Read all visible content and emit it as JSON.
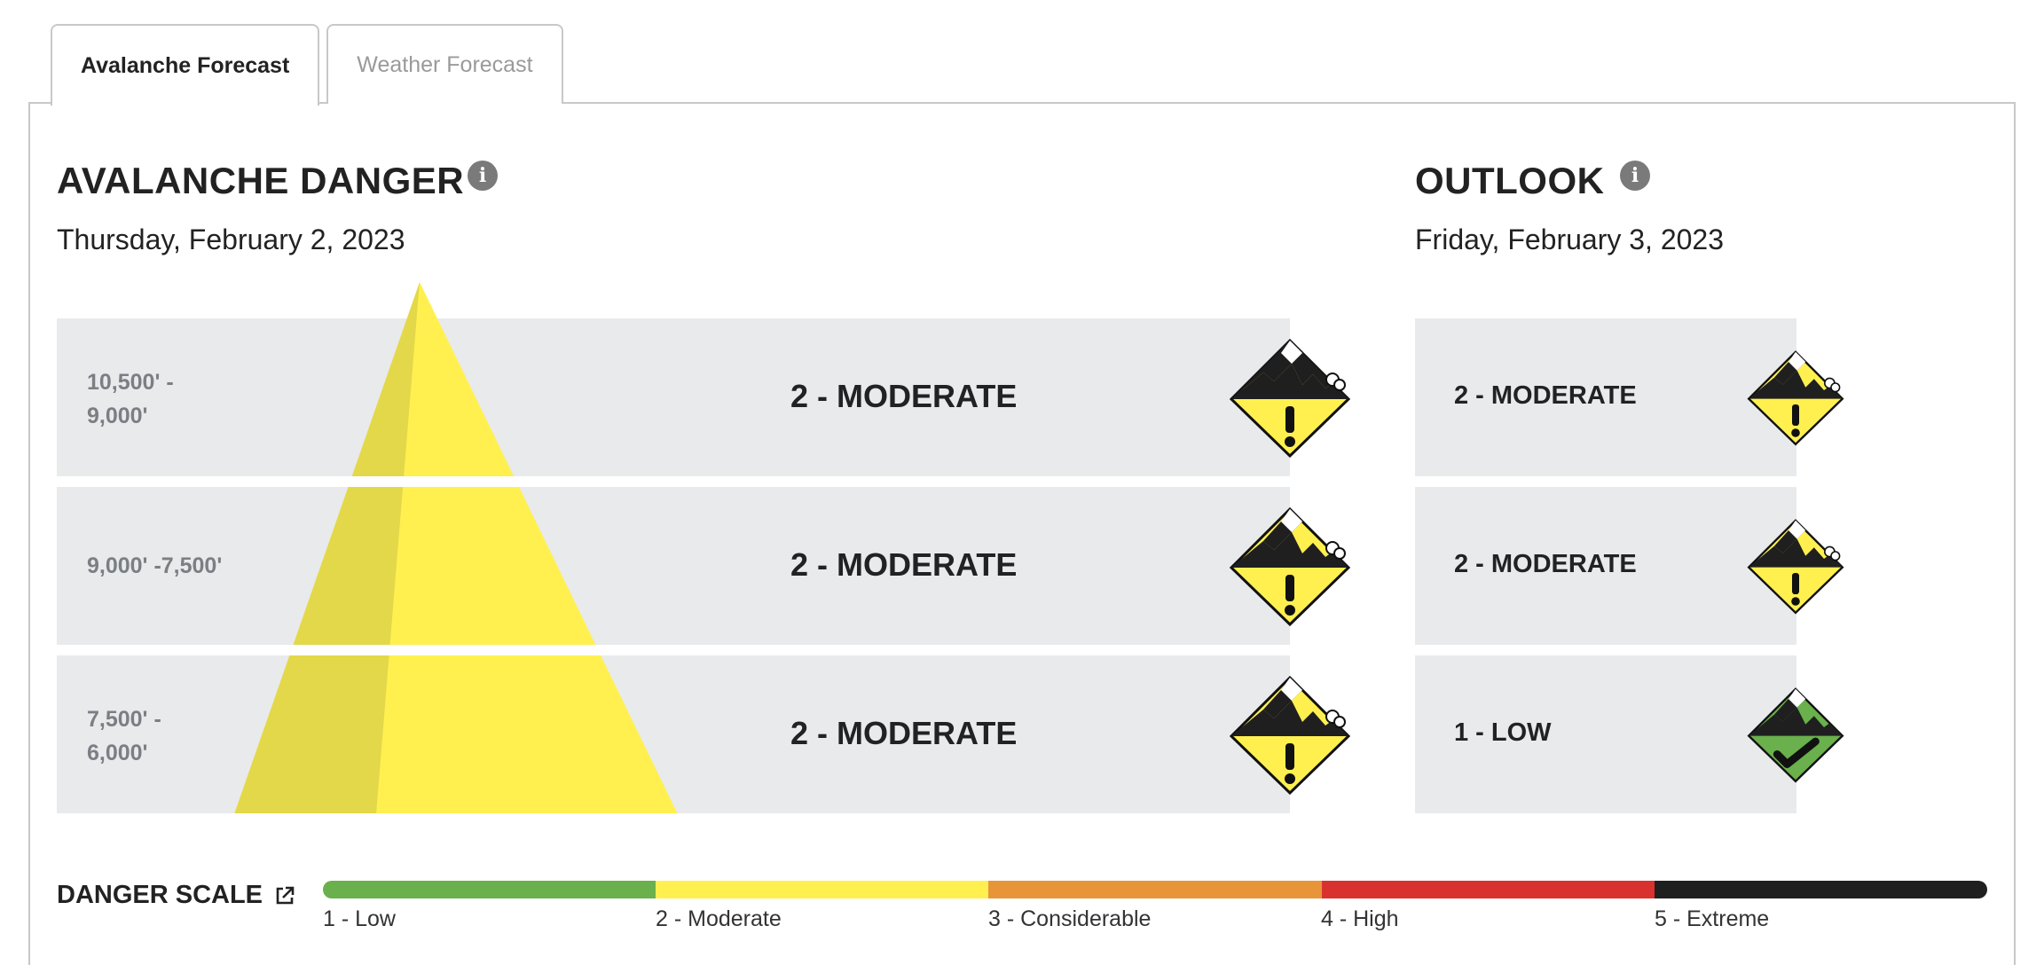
{
  "tabs": [
    {
      "label": "Avalanche Forecast",
      "active": true
    },
    {
      "label": "Weather Forecast",
      "active": false
    }
  ],
  "danger": {
    "title": "AVALANCHE DANGER",
    "date": "Thursday, February 2, 2023",
    "rows": [
      {
        "elevation": "10,500' -\n9,000'",
        "rating": "2 - MODERATE",
        "level": 2,
        "icon": "moderate-danger-icon"
      },
      {
        "elevation": "9,000' -7,500'",
        "rating": "2 - MODERATE",
        "level": 2,
        "icon": "moderate-danger-icon"
      },
      {
        "elevation": "7,500' -\n6,000'",
        "rating": "2 - MODERATE",
        "level": 2,
        "icon": "moderate-danger-icon"
      }
    ]
  },
  "outlook": {
    "title": "OUTLOOK",
    "date": "Friday, February 3, 2023",
    "rows": [
      {
        "rating": "2 - MODERATE",
        "level": 2,
        "icon": "moderate-danger-icon"
      },
      {
        "rating": "2 - MODERATE",
        "level": 2,
        "icon": "moderate-danger-icon"
      },
      {
        "rating": "1 - LOW",
        "level": 1,
        "icon": "low-danger-icon"
      }
    ]
  },
  "scale": {
    "title": "DANGER SCALE",
    "levels": [
      {
        "label": "1 - Low",
        "color": "#6ab04c"
      },
      {
        "label": "2 - Moderate",
        "color": "#fff050"
      },
      {
        "label": "3 - Considerable",
        "color": "#e8953a"
      },
      {
        "label": "4 - High",
        "color": "#d9322e"
      },
      {
        "label": "5 - Extreme",
        "color": "#1f1f1f"
      }
    ]
  },
  "colors": {
    "moderate": "#fff050",
    "moderate_shade": "#e3d84a",
    "low": "#6ab04c",
    "row_bg": "#e8eaec"
  }
}
